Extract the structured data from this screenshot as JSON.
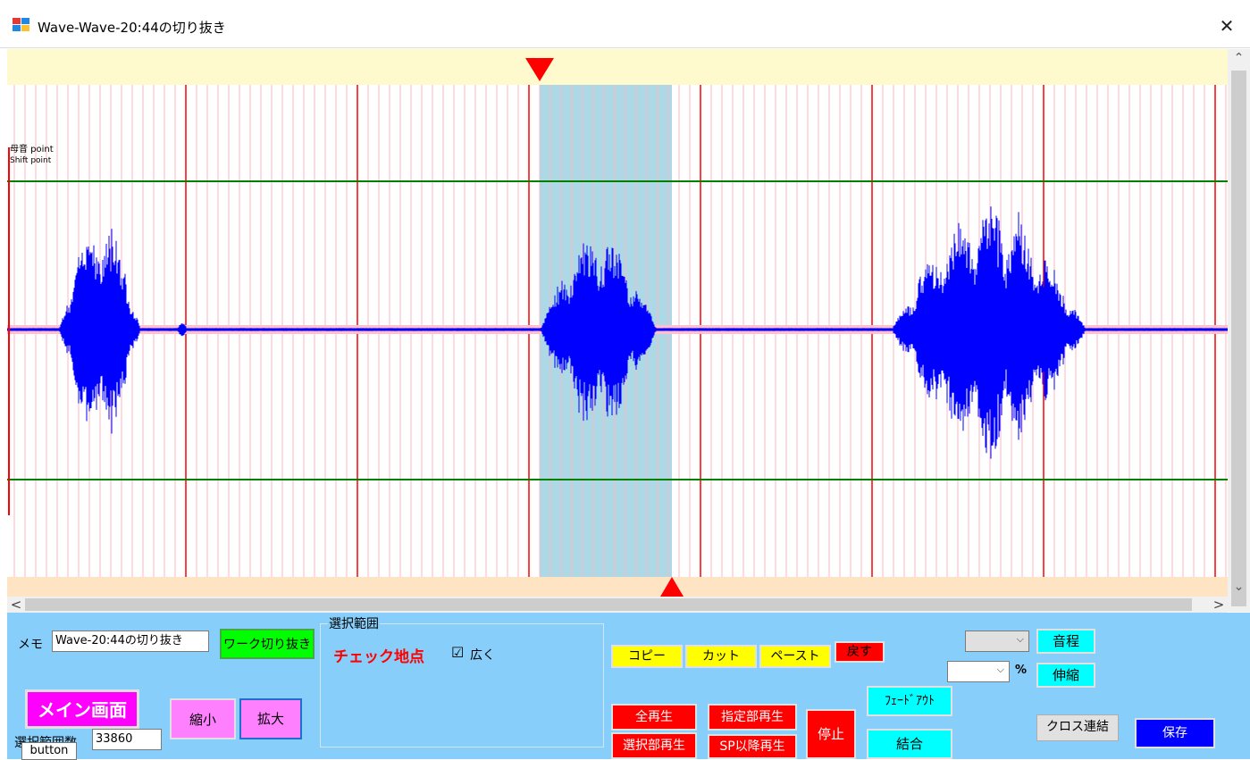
{
  "window": {
    "title": "Wave-Wave-20:44の切り抜き",
    "close_glyph": "✕",
    "icon": "app-window-icon"
  },
  "wave": {
    "label_lines": [
      "母音 point",
      "Shift point"
    ],
    "marker_colors": {
      "top_band": "#fffacd",
      "bottom_band": "#ffe4c4",
      "selection": "#add8e6",
      "waveform": "#0000ff",
      "baseline_band": "#ffc0cb",
      "major_grid": "#ff0000",
      "minor_grid": "#ffb6c1",
      "limit_lines": "#008000"
    }
  },
  "scrollbars": {
    "up": "⌃",
    "down": "⌄",
    "left": "<",
    "right": ">"
  },
  "controls": {
    "memo_label": "メモ",
    "memo_value": "Wave-20:44の切り抜き",
    "work_crop": "ワーク切り抜き",
    "main_screen": "メイン画面",
    "shrink": "縮小",
    "expand": "拡大",
    "sample_count_label": "選択範囲数",
    "sample_count_value": "33860",
    "tooltip_button": "button",
    "group_title": "選択範囲",
    "checkpoint": "チェック地点",
    "wide_label": "広く",
    "wide_checked": "☑",
    "copy": "コピー",
    "cut": "カット",
    "paste": "ペースト",
    "undo": "戻す",
    "pitch_value": "",
    "pitch": "音程",
    "stretch_value": "",
    "percent": "%",
    "stretch": "伸縮",
    "fade_out": "ﾌｪｰﾄﾞｱｳﾄ",
    "play_all": "全再生",
    "play_range": "指定部再生",
    "play_selection": "選択部再生",
    "play_after_sp": "SP以降再生",
    "stop": "停止",
    "join": "結合",
    "cross_join": "クロス連結",
    "save": "保存"
  }
}
